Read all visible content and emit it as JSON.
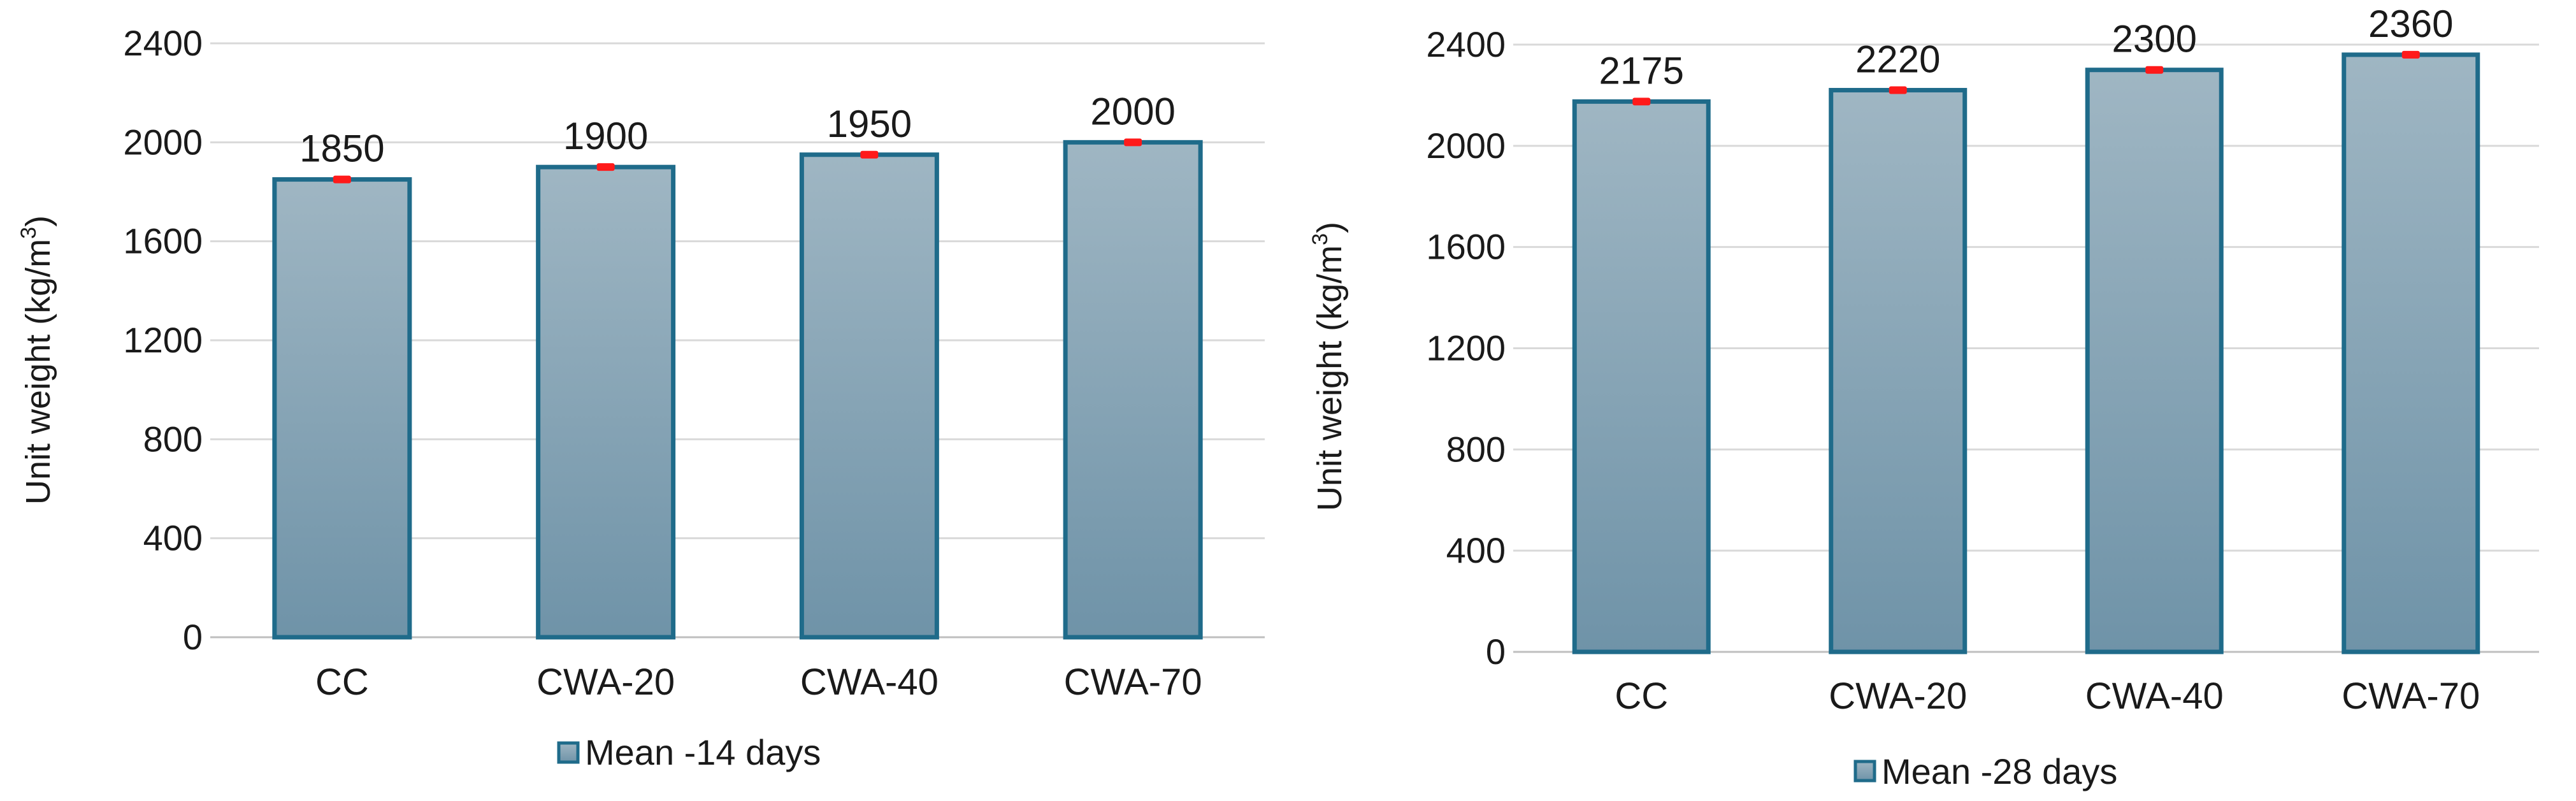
{
  "colors": {
    "bar_top": "#9fb6c3",
    "bar_bottom": "#6f93a8",
    "bar_border": "#1f6b8a",
    "error_bar": "#ff1a1a",
    "grid": "#d9d9d9"
  },
  "chart_data": [
    {
      "type": "bar",
      "categories": [
        "CC",
        "CWA-20",
        "CWA-40",
        "CWA-70"
      ],
      "series": [
        {
          "name": "Mean -14 days",
          "values": [
            1850,
            1900,
            1950,
            2000
          ]
        }
      ],
      "data_labels": [
        "1850",
        "1900",
        "1950",
        "2000"
      ],
      "ylabel": "Unit weight  (kg/m",
      "ylabel_sup": "3",
      "ylabel_tail": ")",
      "ylim": [
        0,
        2400
      ],
      "yticks": [
        0,
        400,
        800,
        1200,
        1600,
        2000,
        2400
      ],
      "ytick_labels": [
        "0",
        "400",
        "800",
        "1200",
        "1600",
        "2000",
        "2400"
      ],
      "grid": true,
      "legend_position": "bottom"
    },
    {
      "type": "bar",
      "categories": [
        "CC",
        "CWA-20",
        "CWA-40",
        "CWA-70"
      ],
      "series": [
        {
          "name": "Mean -28 days",
          "values": [
            2175,
            2220,
            2300,
            2360
          ]
        }
      ],
      "data_labels": [
        "2175",
        "2220",
        "2300",
        "2360"
      ],
      "ylabel": "Unit weight  (kg/m",
      "ylabel_sup": "3",
      "ylabel_tail": ")",
      "ylim": [
        0,
        2400
      ],
      "yticks": [
        0,
        400,
        800,
        1200,
        1600,
        2000,
        2400
      ],
      "ytick_labels": [
        "0",
        "400",
        "800",
        "1200",
        "1600",
        "2000",
        "2400"
      ],
      "grid": true,
      "legend_position": "bottom"
    }
  ]
}
